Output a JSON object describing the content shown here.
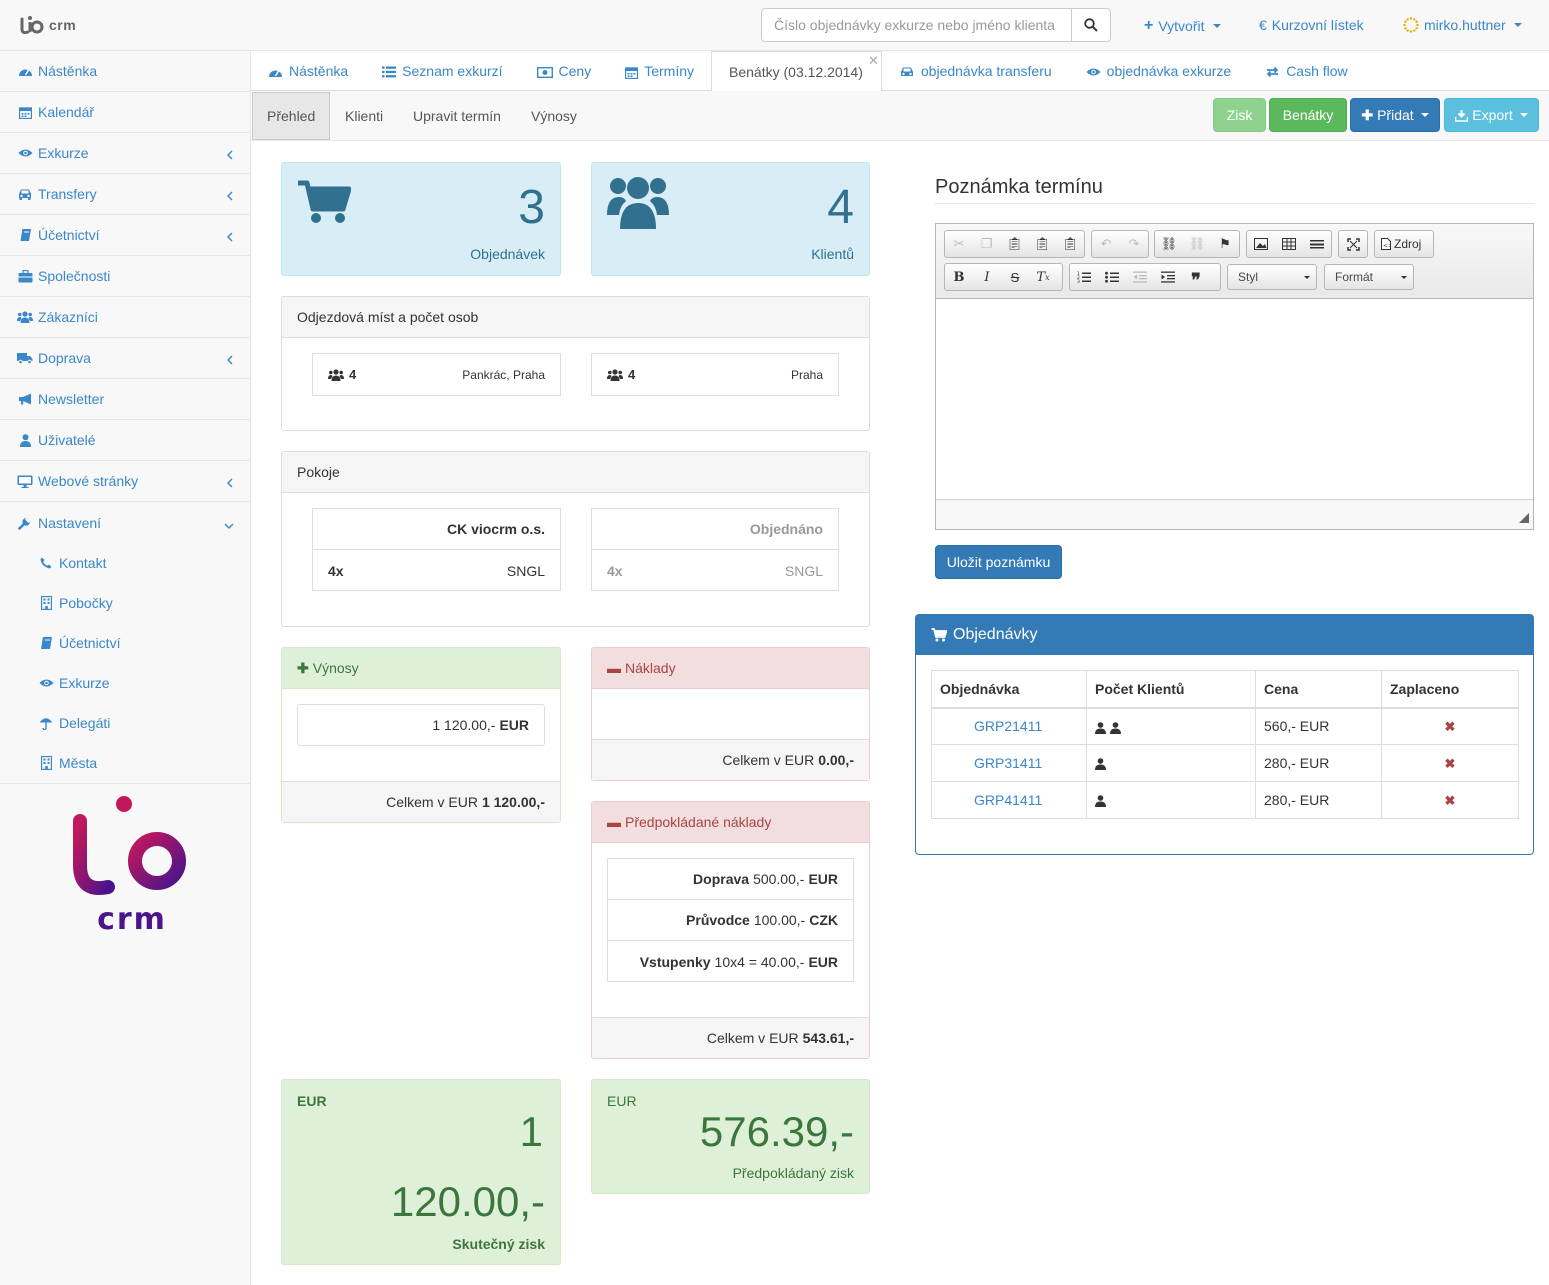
{
  "brand": {
    "crm": "crm"
  },
  "search": {
    "placeholder": "Číslo objednávky exkurze nebo jméno klienta"
  },
  "topnav": {
    "create": "Vytvořit",
    "rates": "Kurzovní lístek",
    "user": "mirko.huttner"
  },
  "sidebar": {
    "items": [
      {
        "label": "Nástěnka",
        "icon": "dashboard-icon"
      },
      {
        "label": "Kalendář",
        "icon": "calendar-icon"
      },
      {
        "label": "Exkurze",
        "icon": "eye-icon"
      },
      {
        "label": "Transfery",
        "icon": "car-icon"
      },
      {
        "label": "Účetnictví",
        "icon": "book-icon"
      },
      {
        "label": "Společnosti",
        "icon": "briefcase-icon"
      },
      {
        "label": "Zákazníci",
        "icon": "users-icon"
      },
      {
        "label": "Doprava",
        "icon": "truck-icon"
      },
      {
        "label": "Newsletter",
        "icon": "bullhorn-icon"
      },
      {
        "label": "Uživatelé",
        "icon": "user-icon"
      },
      {
        "label": "Webové stránky",
        "icon": "desktop-icon"
      },
      {
        "label": "Nastavení",
        "icon": "wrench-icon"
      }
    ],
    "subitems": [
      {
        "label": "Kontakt",
        "icon": "phone-icon"
      },
      {
        "label": "Pobočky",
        "icon": "building-icon"
      },
      {
        "label": "Účetnictví",
        "icon": "book-icon"
      },
      {
        "label": "Exkurze",
        "icon": "eye-icon"
      },
      {
        "label": "Delegáti",
        "icon": "umbrella-icon"
      },
      {
        "label": "Města",
        "icon": "building-icon"
      }
    ]
  },
  "tabs": [
    {
      "label": "Nástěnka",
      "icon": "dashboard-icon"
    },
    {
      "label": "Seznam exkurzí",
      "icon": "list-icon"
    },
    {
      "label": "Ceny",
      "icon": "money-icon"
    },
    {
      "label": "Termíny",
      "icon": "calendar-icon"
    },
    {
      "label": "Benátky (03.12.2014)",
      "icon": ""
    },
    {
      "label": "objednávka transferu",
      "icon": "car-icon"
    },
    {
      "label": "objednávka exkurze",
      "icon": "eye-icon"
    },
    {
      "label": "Cash flow",
      "icon": "exchange-icon"
    }
  ],
  "subtabs": {
    "overview": "Přehled",
    "clients": "Klienti",
    "edit": "Upravit termín",
    "revenue": "Výnosy"
  },
  "header_buttons": {
    "profit": "Zisk",
    "venice": "Benátky",
    "add": "Přidat",
    "export": "Export"
  },
  "stats": {
    "orders_count": "3",
    "orders_label": "Objednávek",
    "clients_count": "4",
    "clients_label": "Klientů"
  },
  "departures": {
    "title": "Odjezdová míst a počet osob",
    "items": [
      {
        "count": "4",
        "place": "Pankrác, Praha"
      },
      {
        "count": "4",
        "place": "Praha"
      }
    ]
  },
  "rooms": {
    "title": "Pokoje",
    "left": {
      "header": "CK viocrm o.s.",
      "qty": "4x",
      "type": "SNGL"
    },
    "right": {
      "header": "Objednáno",
      "qty": "4x",
      "type": "SNGL"
    }
  },
  "revenue": {
    "title": "Výnosy",
    "value": "1 120.00,-",
    "currency": "EUR",
    "total_label": "Celkem v EUR",
    "total": "1 120.00,-"
  },
  "costs": {
    "title": "Náklady",
    "total_label": "Celkem v EUR",
    "total": "0.00,-"
  },
  "expected_costs": {
    "title": "Předpokládané náklady",
    "items": [
      {
        "name": "Doprava",
        "value": "500.00,-",
        "currency": "EUR"
      },
      {
        "name": "Průvodce",
        "value": "100.00,-",
        "currency": "CZK"
      },
      {
        "name": "Vstupenky",
        "value": "10x4 = 40.00,-",
        "currency": "EUR"
      }
    ],
    "total_label": "Celkem v EUR",
    "total": "543.61,-"
  },
  "actual_profit": {
    "currency": "EUR",
    "value_line1": "1",
    "value_line2": "120.00,-",
    "label": "Skutečný zisk"
  },
  "expected_profit": {
    "currency": "EUR",
    "value": "576.39,-",
    "label": "Předpokládaný zisk"
  },
  "note": {
    "title": "Poznámka termínu",
    "save": "Uložit poznámku",
    "source": "Zdroj",
    "style": "Styl",
    "format": "Formát"
  },
  "orders": {
    "title": "Objednávky",
    "columns": [
      "Objednávka",
      "Počet Klientů",
      "Cena",
      "Zaplaceno"
    ],
    "rows": [
      {
        "id": "GRP21411",
        "clients": 2,
        "price": "560,- EUR",
        "paid": false
      },
      {
        "id": "GRP31411",
        "clients": 1,
        "price": "280,- EUR",
        "paid": false
      },
      {
        "id": "GRP41411",
        "clients": 1,
        "price": "280,- EUR",
        "paid": false
      }
    ]
  },
  "colors": {
    "link": "#3a87c9",
    "primary": "#337ab7",
    "success": "#5cb85c",
    "info": "#5bc0de",
    "brand_gradient": [
      "#c2185b",
      "#4a148c"
    ]
  }
}
